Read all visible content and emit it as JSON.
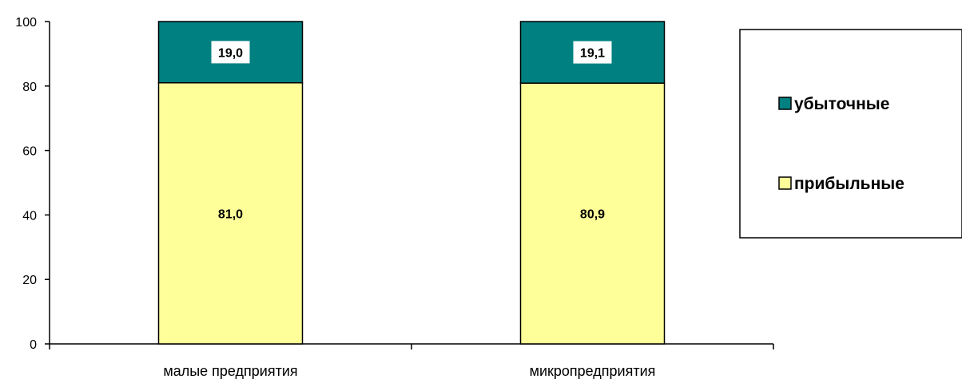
{
  "chart_data": {
    "type": "bar",
    "stacked": true,
    "categories": [
      "малые предприятия",
      "микропредприятия"
    ],
    "series": [
      {
        "name": "прибыльные",
        "values": [
          81.0,
          80.9
        ],
        "labels": [
          "81,0",
          "80,9"
        ],
        "color": "#FFFF99"
      },
      {
        "name": "убыточные",
        "values": [
          19.0,
          19.1
        ],
        "labels": [
          "19,0",
          "19,1"
        ],
        "color": "#008080"
      }
    ],
    "yticks": [
      "0",
      "20",
      "40",
      "60",
      "80",
      "100"
    ],
    "ylim": [
      0,
      100
    ],
    "title": "",
    "xlabel": "",
    "ylabel": "",
    "grid": false,
    "legend_position": "right"
  }
}
